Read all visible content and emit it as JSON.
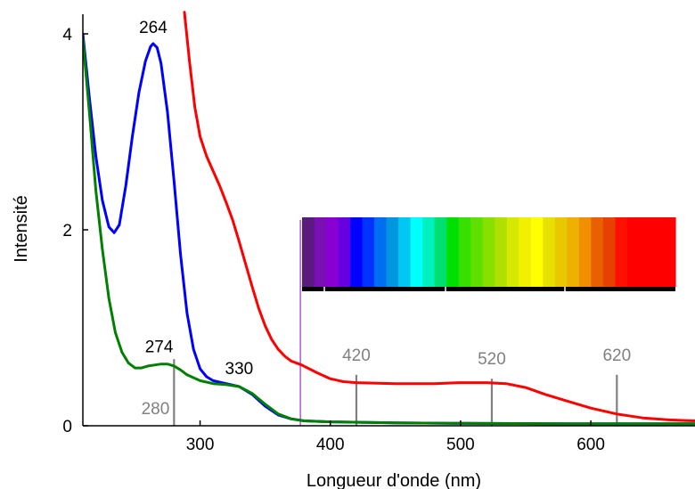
{
  "chart_data": {
    "type": "line",
    "xlabel": "Longueur d'onde (nm)",
    "ylabel": "Intensité",
    "xlim": [
      210,
      680
    ],
    "ylim": [
      0,
      4.2
    ],
    "xticks": [
      300,
      400,
      500,
      600
    ],
    "yticks": [
      0,
      2,
      4
    ],
    "grid": false,
    "legend": "none",
    "series": [
      {
        "color": "#0000ff",
        "points": [
          [
            210,
            4.0
          ],
          [
            215,
            3.35
          ],
          [
            220,
            2.75
          ],
          [
            225,
            2.3
          ],
          [
            230,
            2.03
          ],
          [
            234,
            1.97
          ],
          [
            238,
            2.05
          ],
          [
            243,
            2.45
          ],
          [
            248,
            2.95
          ],
          [
            253,
            3.4
          ],
          [
            258,
            3.72
          ],
          [
            262,
            3.87
          ],
          [
            264,
            3.9
          ],
          [
            267,
            3.86
          ],
          [
            270,
            3.7
          ],
          [
            275,
            3.2
          ],
          [
            280,
            2.5
          ],
          [
            285,
            1.75
          ],
          [
            290,
            1.15
          ],
          [
            295,
            0.78
          ],
          [
            300,
            0.58
          ],
          [
            305,
            0.5
          ],
          [
            310,
            0.46
          ],
          [
            320,
            0.43
          ],
          [
            330,
            0.4
          ],
          [
            340,
            0.32
          ],
          [
            350,
            0.2
          ],
          [
            360,
            0.11
          ],
          [
            370,
            0.07
          ],
          [
            380,
            0.05
          ],
          [
            400,
            0.04
          ],
          [
            450,
            0.03
          ],
          [
            500,
            0.025
          ],
          [
            600,
            0.02
          ],
          [
            680,
            0.02
          ]
        ]
      },
      {
        "color": "#008000",
        "points": [
          [
            210,
            3.95
          ],
          [
            215,
            3.2
          ],
          [
            220,
            2.4
          ],
          [
            225,
            1.8
          ],
          [
            230,
            1.3
          ],
          [
            235,
            0.95
          ],
          [
            240,
            0.75
          ],
          [
            245,
            0.64
          ],
          [
            250,
            0.59
          ],
          [
            255,
            0.59
          ],
          [
            260,
            0.61
          ],
          [
            265,
            0.62
          ],
          [
            270,
            0.63
          ],
          [
            275,
            0.63
          ],
          [
            280,
            0.61
          ],
          [
            285,
            0.57
          ],
          [
            290,
            0.52
          ],
          [
            300,
            0.46
          ],
          [
            310,
            0.43
          ],
          [
            320,
            0.42
          ],
          [
            330,
            0.4
          ],
          [
            340,
            0.33
          ],
          [
            350,
            0.22
          ],
          [
            360,
            0.12
          ],
          [
            370,
            0.07
          ],
          [
            380,
            0.05
          ],
          [
            400,
            0.04
          ],
          [
            450,
            0.03
          ],
          [
            500,
            0.025
          ],
          [
            600,
            0.02
          ],
          [
            680,
            0.02
          ]
        ]
      },
      {
        "color": "#ff0000",
        "points": [
          [
            288,
            4.22
          ],
          [
            292,
            3.7
          ],
          [
            296,
            3.25
          ],
          [
            300,
            2.95
          ],
          [
            305,
            2.75
          ],
          [
            310,
            2.6
          ],
          [
            315,
            2.45
          ],
          [
            320,
            2.28
          ],
          [
            325,
            2.1
          ],
          [
            330,
            1.88
          ],
          [
            335,
            1.65
          ],
          [
            340,
            1.42
          ],
          [
            345,
            1.2
          ],
          [
            350,
            1.02
          ],
          [
            355,
            0.88
          ],
          [
            360,
            0.78
          ],
          [
            365,
            0.71
          ],
          [
            370,
            0.66
          ],
          [
            378,
            0.62
          ],
          [
            390,
            0.54
          ],
          [
            400,
            0.48
          ],
          [
            410,
            0.45
          ],
          [
            420,
            0.44
          ],
          [
            450,
            0.43
          ],
          [
            480,
            0.43
          ],
          [
            500,
            0.44
          ],
          [
            520,
            0.44
          ],
          [
            535,
            0.43
          ],
          [
            550,
            0.39
          ],
          [
            565,
            0.32
          ],
          [
            580,
            0.26
          ],
          [
            600,
            0.18
          ],
          [
            620,
            0.12
          ],
          [
            640,
            0.08
          ],
          [
            660,
            0.06
          ],
          [
            680,
            0.05
          ]
        ]
      }
    ],
    "annotations": {
      "peaks": [
        {
          "text": "264",
          "x": 264,
          "y": 3.9,
          "color": "#000000"
        },
        {
          "text": "274",
          "x": 274,
          "y": 0.63,
          "color": "#000000"
        },
        {
          "text": "330",
          "x": 330,
          "y": 0.4,
          "color": "#000000"
        }
      ],
      "markers": [
        {
          "text": "280",
          "x": 280,
          "y_top": 0.68,
          "color": "#808080"
        },
        {
          "text": "420",
          "x": 420,
          "y_top": 0.52,
          "color": "#808080"
        },
        {
          "text": "520",
          "x": 524,
          "y_top": 0.48,
          "color": "#808080"
        },
        {
          "text": "620",
          "x": 620,
          "y_top": 0.52,
          "color": "#808080"
        }
      ],
      "cutoff_line": {
        "x": 377,
        "y_top": 2.1,
        "color": "#9b30c8"
      }
    },
    "spectrum_strip": {
      "colors": [
        "#5a1a7e",
        "#7a10b4",
        "#8a00d4",
        "#6600e0",
        "#0000ff",
        "#0033ff",
        "#006ef0",
        "#0096e0",
        "#00c8f0",
        "#00ffff",
        "#00f0c0",
        "#00e070",
        "#00e000",
        "#38e000",
        "#60e000",
        "#88e000",
        "#b0e000",
        "#d4e800",
        "#f0f000",
        "#ffff00",
        "#e8e000",
        "#e8c800",
        "#f0b000",
        "#f09000",
        "#e86000",
        "#e84000",
        "#ff1000",
        "#ff0000",
        "#ff0000",
        "#ff0000",
        "#ff0000"
      ]
    }
  }
}
